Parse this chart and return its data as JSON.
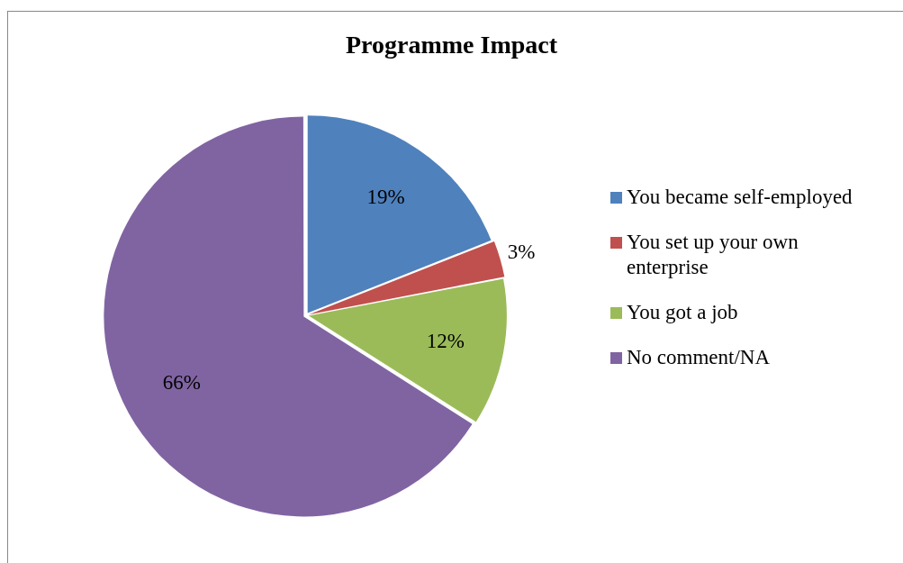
{
  "chart_data": {
    "type": "pie",
    "title": "Programme Impact",
    "categories": [
      "You became self-employed",
      "You set up your own enterprise",
      "You got a job",
      "No comment/NA"
    ],
    "values": [
      19,
      3,
      12,
      66
    ],
    "colors": [
      "#4f81bd",
      "#c0504d",
      "#9bbb59",
      "#8064a2"
    ],
    "value_labels": [
      "19%",
      "3%",
      "12%",
      "66%"
    ],
    "legend": "right"
  }
}
